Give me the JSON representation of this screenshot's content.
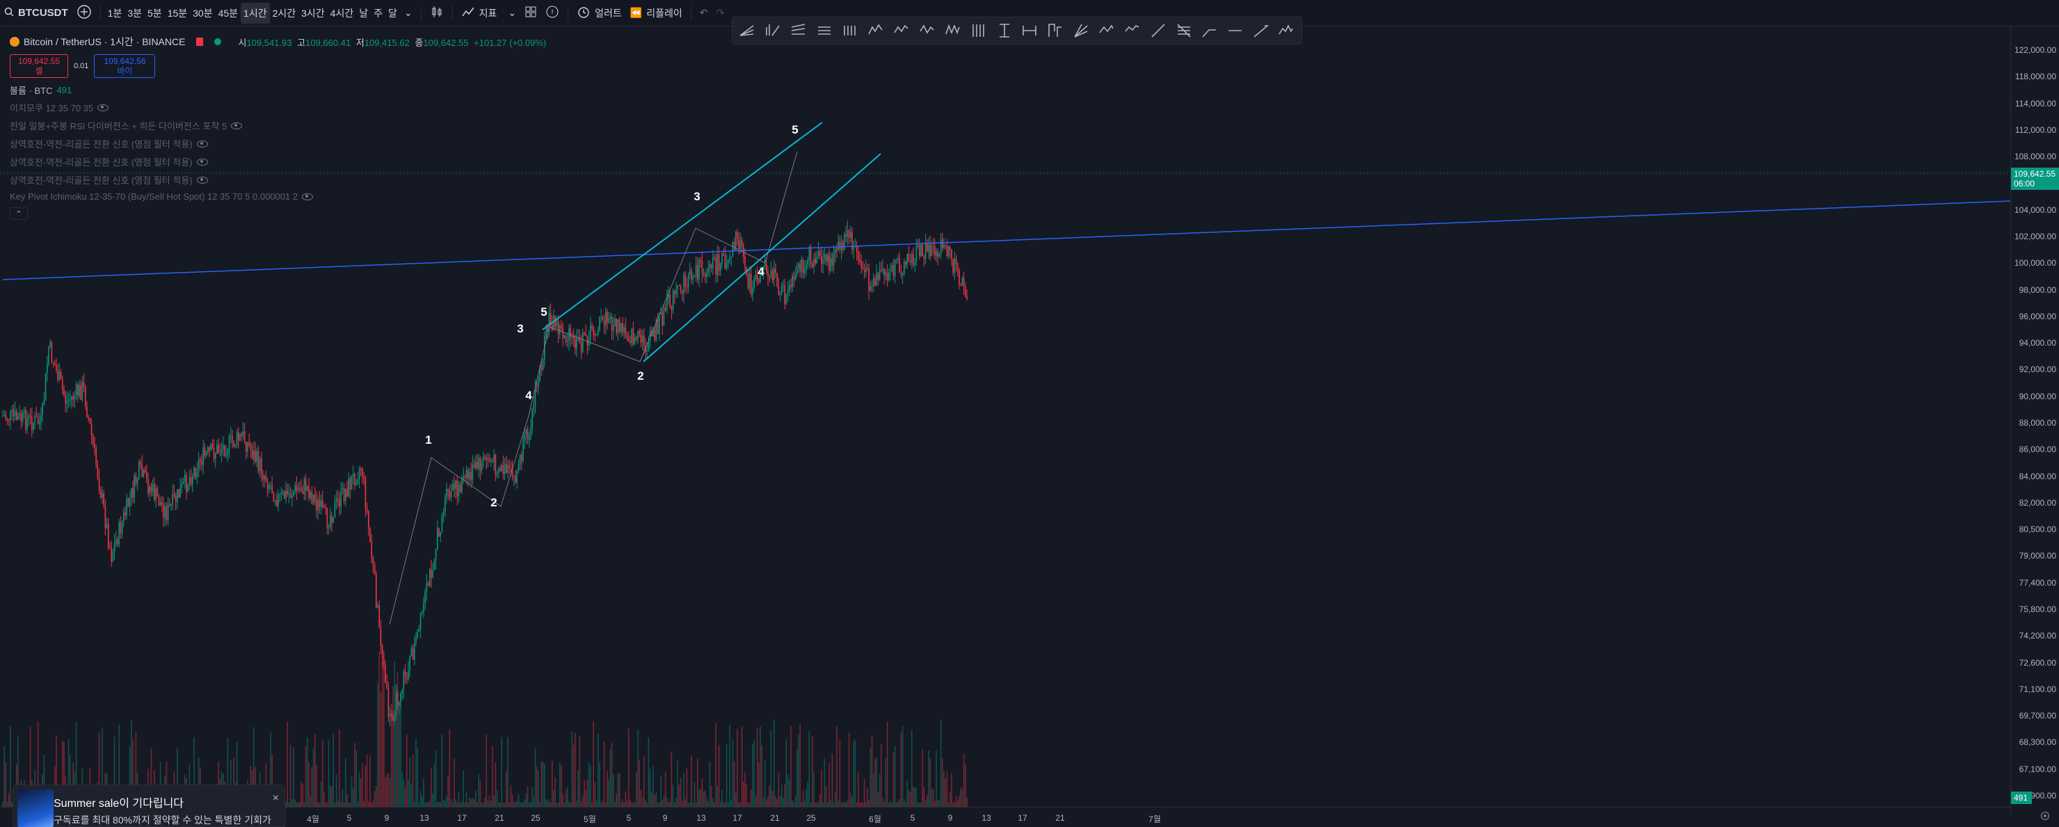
{
  "topbar": {
    "symbol": "BTCUSDT",
    "intervals": [
      "1분",
      "3분",
      "5분",
      "15분",
      "30분",
      "45분",
      "1시간",
      "2시간",
      "3시간",
      "4시간",
      "날",
      "주",
      "달"
    ],
    "active_interval": "1시간",
    "indicators_label": "지표",
    "alert_label": "얼러트",
    "replay_label": "리플레이"
  },
  "legend": {
    "title": "Bitcoin / TetherUS · 1시간 · BINANCE",
    "ohlc": {
      "o_label": "시",
      "o": "109,541.93",
      "h_label": "고",
      "h": "109,660.41",
      "l_label": "저",
      "l": "109,415.62",
      "c_label": "종",
      "c": "109,642.55",
      "chg": "+101.27 (+0.09%)"
    },
    "sell_price": "109,642.55",
    "sell_label": "셀",
    "spread": "0.01",
    "buy_price": "109,642.56",
    "buy_label": "바이",
    "volume_label": "볼륨 · BTC",
    "volume_value": "491",
    "indicators": [
      "이치모쿠 12 35 70 35",
      "전일 일봉+주봉 RSI 다이버전스 + 히든 다이버전스 포착 5",
      "상역호전-역전-리골든 전환 신호 (영점 필터 적용)",
      "상역호전-역전-리골든 전환 신호 (영점 필터 적용)",
      "상역호전-역전-리골든 전환 신호 (영점 필터 적용)",
      "Key Pivot Ichimoku 12-35-70 (Buy/Sell Hot Spot) 12 35 70 5 0.000001 2"
    ]
  },
  "price_scale": {
    "ticks": [
      "122,000.00",
      "118,000.00",
      "114,000.00",
      "112,000.00",
      "108,000.00",
      "106,000.00",
      "104,000.00",
      "102,000.00",
      "100,000.00",
      "98,000.00",
      "96,000.00",
      "94,000.00",
      "92,000.00",
      "90,000.00",
      "88,000.00",
      "86,000.00",
      "84,000.00",
      "82,000.00",
      "80,500.00",
      "79,000.00",
      "77,400.00",
      "75,800.00",
      "74,200.00",
      "72,600.00",
      "71,100.00",
      "69,700.00",
      "68,300.00",
      "67,100.00",
      "65,900.00"
    ],
    "last_price": "109,642.55",
    "countdown": "06:00",
    "volume_badge": "491",
    "last_color": "#089981"
  },
  "time_scale": {
    "ticks": [
      "4월",
      "5",
      "9",
      "13",
      "17",
      "21",
      "25",
      "5월",
      "5",
      "9",
      "13",
      "17",
      "21",
      "25",
      "6월",
      "5",
      "9",
      "13",
      "17",
      "21",
      "7월"
    ]
  },
  "wave_labels": [
    "1",
    "2",
    "3",
    "4",
    "5",
    "2",
    "3",
    "4",
    "5"
  ],
  "promo": {
    "title": "Summer sale이 기다립니다",
    "body": "구독료를 최대 80%까지 절약할 수 있는 특별한 기회가",
    "close": "×"
  },
  "colors": {
    "up": "#089981",
    "down": "#f23645",
    "trend": "#2962ff",
    "channel": "#00bcd4"
  }
}
